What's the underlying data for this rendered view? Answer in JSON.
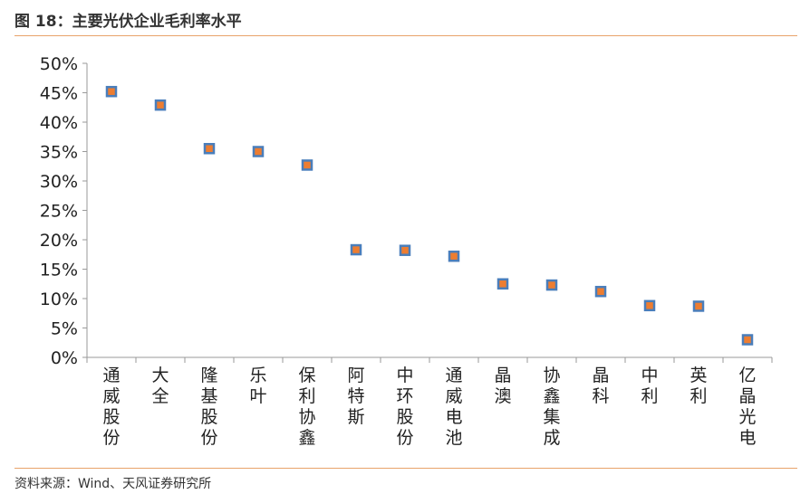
{
  "title": "图 18：主要光伏企业毛利率水平",
  "source": "资料来源：Wind、天风证券研究所",
  "colors": {
    "marker_fill": "#ed7d31",
    "marker_stroke": "#4a7ebb",
    "accent_rule": "#e8a36a"
  },
  "chart_data": {
    "type": "scatter",
    "categories": [
      "通威股份",
      "大全",
      "隆基股份",
      "乐叶",
      "保利协鑫",
      "阿特斯",
      "中环股份",
      "通威电池",
      "晶澳",
      "协鑫集成",
      "晶科",
      "中利",
      "英利",
      "亿晶光电"
    ],
    "values": [
      45.2,
      42.9,
      35.5,
      35.0,
      32.7,
      18.3,
      18.2,
      17.2,
      12.5,
      12.3,
      11.2,
      8.8,
      8.7,
      3.0
    ],
    "yticks": [
      "0%",
      "5%",
      "10%",
      "15%",
      "20%",
      "25%",
      "30%",
      "35%",
      "40%",
      "45%",
      "50%"
    ],
    "ylim": [
      0,
      50
    ],
    "grid": false,
    "legend": "none"
  }
}
